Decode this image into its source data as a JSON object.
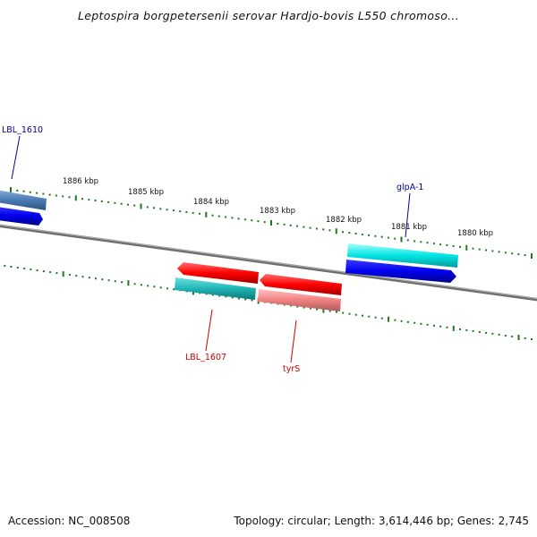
{
  "title": "Leptospira borgpetersenii serovar Hardjo-bovis L550 chromoso...",
  "footer": {
    "accession": "Accession: NC_008508",
    "summary": "Topology: circular; Length: 3,614,446 bp; Genes: 2,745"
  },
  "ticks": {
    "labels": [
      "1886 kbp",
      "1885 kbp",
      "1884 kbp",
      "1883 kbp",
      "1882 kbp",
      "1881 kbp",
      "1880 kbp"
    ]
  },
  "features": {
    "forward": [
      {
        "label": "LBL_1610",
        "color": "#4a7db5"
      },
      {
        "label": "glpA-1",
        "color": "#00e5e5"
      }
    ],
    "reverse": [
      {
        "label": "LBL_1607",
        "color": "#ff0000"
      },
      {
        "label": "tyrS",
        "color": "#ff0000"
      }
    ]
  },
  "colors": {
    "backbone": "#808080",
    "tick": "#1f7a1f",
    "forward_label": "#00008b",
    "reverse_label": "#cc0000",
    "strand_blue": "#0000ee",
    "strand_cyan": "#1fb5b5",
    "strand_red": "#ff1a1a",
    "strand_pink": "#f08080"
  }
}
